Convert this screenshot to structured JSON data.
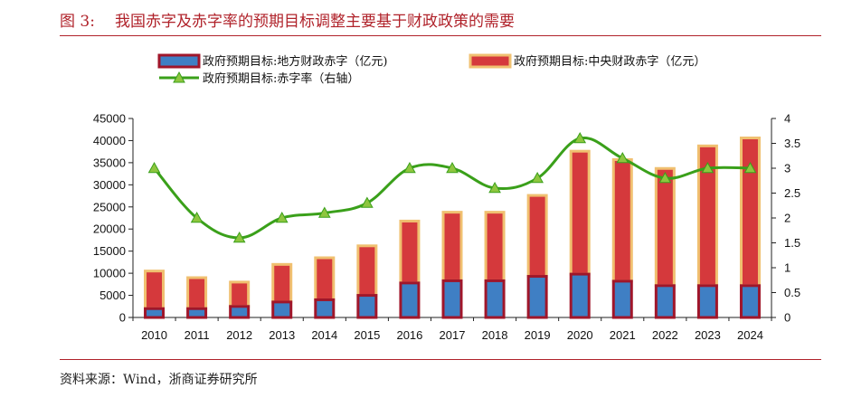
{
  "figure": {
    "number": "图 3:",
    "title": "我国赤字及赤字率的预期目标调整主要基于财政政策的需要",
    "source": "资料来源：Wind，浙商证券研究所"
  },
  "colors": {
    "local_fill": "#3f7fc4",
    "local_border": "#a0162a",
    "central_fill": "#d5393c",
    "central_border": "#f0c070",
    "line": "#3aa01a",
    "marker": "#8ec63f",
    "accent": "#b0222a"
  },
  "chart_data": {
    "type": "bar",
    "stacked": true,
    "categories": [
      "2010",
      "2011",
      "2012",
      "2013",
      "2014",
      "2015",
      "2016",
      "2017",
      "2018",
      "2019",
      "2020",
      "2021",
      "2022",
      "2023",
      "2024"
    ],
    "series": [
      {
        "name": "政府预期目标:地方财政赤字（亿元)",
        "type": "bar",
        "axis": "left",
        "values": [
          2000,
          2000,
          2500,
          3500,
          4000,
          5000,
          7800,
          8300,
          8300,
          9300,
          9800,
          8200,
          7200,
          7200,
          7200
        ]
      },
      {
        "name": "政府预期目标:中央财政赤字（亿元）",
        "type": "bar",
        "axis": "left",
        "values": [
          8500,
          7000,
          5500,
          8500,
          9500,
          11200,
          14000,
          15500,
          15500,
          18300,
          27800,
          27500,
          26500,
          31600,
          33400
        ]
      },
      {
        "name": "政府预期目标:赤字率（右轴）",
        "type": "line",
        "axis": "right",
        "values": [
          3.0,
          2.0,
          1.6,
          2.0,
          2.1,
          2.3,
          3.0,
          3.0,
          2.6,
          2.8,
          3.6,
          3.2,
          2.8,
          3.0,
          3.0
        ]
      }
    ],
    "left_axis": {
      "min": 0,
      "max": 45000,
      "step": 5000,
      "tick_labels": [
        "0",
        "5000",
        "10000",
        "15000",
        "20000",
        "25000",
        "30000",
        "35000",
        "40000",
        "45000"
      ]
    },
    "right_axis": {
      "min": 0,
      "max": 4,
      "step": 0.5,
      "tick_labels": [
        "0",
        "0.5",
        "1",
        "1.5",
        "2",
        "2.5",
        "3",
        "3.5",
        "4"
      ]
    },
    "grid": false,
    "legend_position": "top"
  }
}
